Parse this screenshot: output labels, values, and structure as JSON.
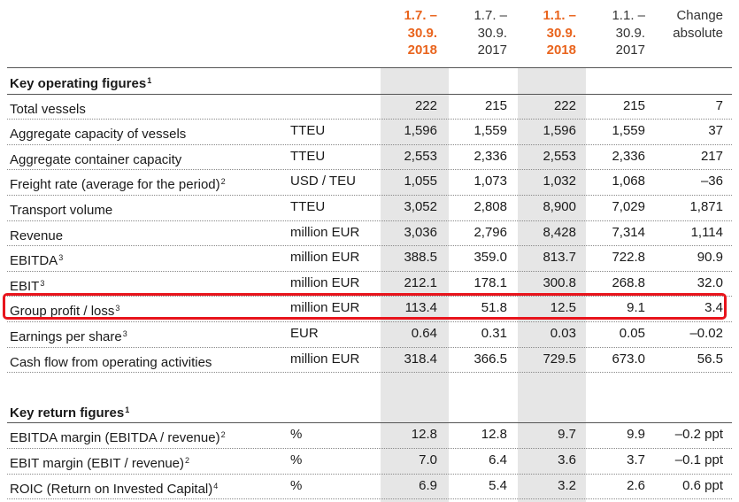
{
  "header": {
    "columns": [
      {
        "line1": "1.7. –",
        "line2": "30.9.",
        "line3": "2018",
        "emphasis": true
      },
      {
        "line1": "1.7. –",
        "line2": "30.9.",
        "line3": "2017",
        "emphasis": false
      },
      {
        "line1": "1.1. –",
        "line2": "30.9.",
        "line3": "2018",
        "emphasis": true
      },
      {
        "line1": "1.1. –",
        "line2": "30.9.",
        "line3": "2017",
        "emphasis": false
      },
      {
        "line1": "",
        "line2": "Change",
        "line3": "absolute",
        "emphasis": false
      }
    ]
  },
  "sections": [
    {
      "title": "Key operating figures",
      "footnote": "1",
      "rows": [
        {
          "label": "Total vessels",
          "footnote": "",
          "unit": "",
          "values": [
            "222",
            "215",
            "222",
            "215",
            "7"
          ]
        },
        {
          "label": "Aggregate capacity of vessels",
          "footnote": "",
          "unit": "TTEU",
          "values": [
            "1,596",
            "1,559",
            "1,596",
            "1,559",
            "37"
          ]
        },
        {
          "label": "Aggregate container capacity",
          "footnote": "",
          "unit": "TTEU",
          "values": [
            "2,553",
            "2,336",
            "2,553",
            "2,336",
            "217"
          ]
        },
        {
          "label": "Freight rate (average for the period)",
          "footnote": "2",
          "unit": "USD / TEU",
          "values": [
            "1,055",
            "1,073",
            "1,032",
            "1,068",
            "–36"
          ]
        },
        {
          "label": "Transport volume",
          "footnote": "",
          "unit": "TTEU",
          "values": [
            "3,052",
            "2,808",
            "8,900",
            "7,029",
            "1,871"
          ]
        },
        {
          "label": "Revenue",
          "footnote": "",
          "unit": "million EUR",
          "values": [
            "3,036",
            "2,796",
            "8,428",
            "7,314",
            "1,114"
          ]
        },
        {
          "label": "EBITDA",
          "footnote": "3",
          "unit": "million EUR",
          "values": [
            "388.5",
            "359.0",
            "813.7",
            "722.8",
            "90.9"
          ]
        },
        {
          "label": "EBIT",
          "footnote": "3",
          "unit": "million EUR",
          "values": [
            "212.1",
            "178.1",
            "300.8",
            "268.8",
            "32.0"
          ]
        },
        {
          "label": "Group profit / loss",
          "footnote": "3",
          "unit": "million EUR",
          "values": [
            "113.4",
            "51.8",
            "12.5",
            "9.1",
            "3.4"
          ],
          "highlighted": true
        },
        {
          "label": "Earnings per share",
          "footnote": "3",
          "unit": "EUR",
          "values": [
            "0.64",
            "0.31",
            "0.03",
            "0.05",
            "–0.02"
          ]
        },
        {
          "label": "Cash flow from operating activities",
          "footnote": "",
          "unit": "million EUR",
          "values": [
            "318.4",
            "366.5",
            "729.5",
            "673.0",
            "56.5"
          ]
        }
      ]
    },
    {
      "title": "Key return figures",
      "footnote": "1",
      "rows": [
        {
          "label": "EBITDA margin (EBITDA / revenue)",
          "footnote": "2",
          "unit": "%",
          "values": [
            "12.8",
            "12.8",
            "9.7",
            "9.9",
            "–0.2 ppt"
          ]
        },
        {
          "label": "EBIT margin (EBIT / revenue)",
          "footnote": "2",
          "unit": "%",
          "values": [
            "7.0",
            "6.4",
            "3.6",
            "3.7",
            "–0.1 ppt"
          ]
        },
        {
          "label": "ROIC (Return on Invested Capital)",
          "footnote": "4",
          "unit": "%",
          "values": [
            "6.9",
            "5.4",
            "3.2",
            "2.6",
            "0.6 ppt"
          ]
        }
      ]
    }
  ],
  "colors": {
    "accent_orange": "#e9641d",
    "highlight_red": "#e8141c",
    "shade": "#e6e6e6"
  }
}
